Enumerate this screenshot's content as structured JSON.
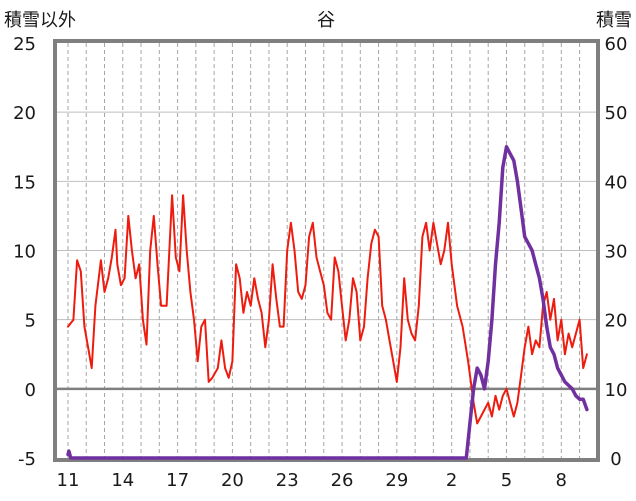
{
  "chart_data": {
    "type": "line",
    "title": "谷",
    "left_axis": {
      "label": "積雪以外",
      "min": -5,
      "max": 25,
      "step": 5,
      "ticks": [
        "25",
        "20",
        "15",
        "10",
        "5",
        "0",
        "-5"
      ]
    },
    "right_axis": {
      "label": "積雪",
      "min": 0,
      "max": 60,
      "step": 10,
      "ticks": [
        "60",
        "50",
        "40",
        "30",
        "20",
        "10",
        "0"
      ]
    },
    "x_ticks": [
      {
        "label": "11",
        "day": 0
      },
      {
        "label": "14",
        "day": 3
      },
      {
        "label": "17",
        "day": 6
      },
      {
        "label": "20",
        "day": 9
      },
      {
        "label": "23",
        "day": 12
      },
      {
        "label": "26",
        "day": 15
      },
      {
        "label": "29",
        "day": 18
      },
      {
        "label": "2",
        "day": 21
      },
      {
        "label": "5",
        "day": 24
      },
      {
        "label": "8",
        "day": 27
      }
    ],
    "x_range": [
      -0.6,
      28.9
    ],
    "grid": true,
    "series": [
      {
        "axis": "left",
        "color": "#ee1c0e",
        "points": [
          [
            0,
            4.5
          ],
          [
            0.3,
            5.0
          ],
          [
            0.5,
            9.3
          ],
          [
            0.7,
            8.5
          ],
          [
            0.9,
            4.5
          ],
          [
            1.1,
            3.0
          ],
          [
            1.3,
            1.5
          ],
          [
            1.5,
            6.0
          ],
          [
            1.8,
            9.3
          ],
          [
            2.0,
            7.0
          ],
          [
            2.2,
            8.0
          ],
          [
            2.4,
            9.5
          ],
          [
            2.6,
            11.5
          ],
          [
            2.7,
            9.0
          ],
          [
            2.9,
            7.5
          ],
          [
            3.1,
            8.0
          ],
          [
            3.3,
            12.5
          ],
          [
            3.5,
            10.0
          ],
          [
            3.7,
            8.0
          ],
          [
            3.9,
            9.0
          ],
          [
            4.1,
            5.0
          ],
          [
            4.3,
            3.2
          ],
          [
            4.5,
            10.0
          ],
          [
            4.7,
            12.5
          ],
          [
            4.9,
            9.0
          ],
          [
            5.1,
            6.0
          ],
          [
            5.4,
            6.0
          ],
          [
            5.7,
            14.0
          ],
          [
            5.9,
            9.5
          ],
          [
            6.1,
            8.5
          ],
          [
            6.3,
            14.0
          ],
          [
            6.5,
            10.0
          ],
          [
            6.7,
            7.0
          ],
          [
            6.9,
            5.0
          ],
          [
            7.1,
            2.0
          ],
          [
            7.3,
            4.5
          ],
          [
            7.5,
            5.0
          ],
          [
            7.7,
            0.5
          ],
          [
            7.9,
            0.8
          ],
          [
            8.2,
            1.5
          ],
          [
            8.4,
            3.5
          ],
          [
            8.6,
            1.5
          ],
          [
            8.8,
            0.8
          ],
          [
            9.0,
            2.0
          ],
          [
            9.2,
            9.0
          ],
          [
            9.4,
            8.0
          ],
          [
            9.6,
            5.5
          ],
          [
            9.8,
            7.0
          ],
          [
            10.0,
            6.0
          ],
          [
            10.2,
            8.0
          ],
          [
            10.4,
            6.5
          ],
          [
            10.6,
            5.5
          ],
          [
            10.8,
            3.0
          ],
          [
            11.0,
            5.0
          ],
          [
            11.2,
            9.0
          ],
          [
            11.4,
            6.5
          ],
          [
            11.6,
            4.5
          ],
          [
            11.8,
            4.5
          ],
          [
            12.0,
            10.0
          ],
          [
            12.2,
            12.0
          ],
          [
            12.4,
            10.0
          ],
          [
            12.6,
            7.0
          ],
          [
            12.8,
            6.5
          ],
          [
            13.0,
            7.5
          ],
          [
            13.2,
            11.0
          ],
          [
            13.4,
            12.0
          ],
          [
            13.6,
            9.5
          ],
          [
            13.8,
            8.5
          ],
          [
            14.0,
            7.5
          ],
          [
            14.2,
            5.5
          ],
          [
            14.4,
            5.0
          ],
          [
            14.6,
            9.5
          ],
          [
            14.8,
            8.5
          ],
          [
            15.0,
            6.0
          ],
          [
            15.2,
            3.5
          ],
          [
            15.4,
            5.0
          ],
          [
            15.6,
            8.0
          ],
          [
            15.8,
            7.0
          ],
          [
            16.0,
            3.5
          ],
          [
            16.2,
            4.5
          ],
          [
            16.4,
            8.0
          ],
          [
            16.6,
            10.5
          ],
          [
            16.8,
            11.5
          ],
          [
            17.0,
            11.0
          ],
          [
            17.2,
            6.0
          ],
          [
            17.4,
            5.0
          ],
          [
            17.6,
            3.5
          ],
          [
            17.8,
            2.0
          ],
          [
            18.0,
            0.5
          ],
          [
            18.2,
            3.0
          ],
          [
            18.4,
            8.0
          ],
          [
            18.6,
            5.0
          ],
          [
            18.8,
            4.0
          ],
          [
            19.0,
            3.5
          ],
          [
            19.2,
            6.0
          ],
          [
            19.4,
            11.0
          ],
          [
            19.6,
            12.0
          ],
          [
            19.8,
            10.0
          ],
          [
            20.0,
            12.0
          ],
          [
            20.2,
            10.5
          ],
          [
            20.4,
            9.0
          ],
          [
            20.6,
            10.0
          ],
          [
            20.8,
            12.0
          ],
          [
            21.0,
            9.0
          ],
          [
            21.3,
            6.0
          ],
          [
            21.6,
            4.5
          ],
          [
            21.9,
            2.0
          ],
          [
            22.2,
            -1.0
          ],
          [
            22.4,
            -2.5
          ],
          [
            22.6,
            -2.0
          ],
          [
            22.8,
            -1.5
          ],
          [
            23.0,
            -1.0
          ],
          [
            23.2,
            -2.0
          ],
          [
            23.4,
            -0.5
          ],
          [
            23.6,
            -1.5
          ],
          [
            23.8,
            -0.5
          ],
          [
            24.0,
            0.0
          ],
          [
            24.2,
            -1.0
          ],
          [
            24.4,
            -2.0
          ],
          [
            24.6,
            -1.0
          ],
          [
            24.8,
            1.0
          ],
          [
            25.0,
            3.0
          ],
          [
            25.2,
            4.5
          ],
          [
            25.4,
            2.5
          ],
          [
            25.6,
            3.5
          ],
          [
            25.8,
            3.0
          ],
          [
            26.0,
            6.0
          ],
          [
            26.2,
            7.0
          ],
          [
            26.4,
            5.0
          ],
          [
            26.6,
            6.5
          ],
          [
            26.8,
            3.5
          ],
          [
            27.0,
            5.0
          ],
          [
            27.2,
            2.5
          ],
          [
            27.4,
            4.0
          ],
          [
            27.6,
            3.0
          ],
          [
            27.8,
            4.0
          ],
          [
            28.0,
            5.0
          ],
          [
            28.2,
            1.5
          ],
          [
            28.4,
            2.5
          ]
        ]
      },
      {
        "axis": "right",
        "color": "#7030a0",
        "points": [
          [
            0.0,
            0.5
          ],
          [
            0.05,
            1.0
          ],
          [
            0.15,
            0.0
          ],
          [
            21.8,
            0.0
          ],
          [
            22.0,
            5.0
          ],
          [
            22.2,
            10.0
          ],
          [
            22.4,
            13.0
          ],
          [
            22.6,
            12.0
          ],
          [
            22.8,
            10.0
          ],
          [
            23.0,
            14.0
          ],
          [
            23.2,
            20.0
          ],
          [
            23.4,
            28.0
          ],
          [
            23.6,
            34.0
          ],
          [
            23.8,
            42.0
          ],
          [
            24.0,
            45.0
          ],
          [
            24.2,
            44.0
          ],
          [
            24.4,
            43.0
          ],
          [
            24.6,
            40.0
          ],
          [
            24.8,
            36.0
          ],
          [
            25.0,
            32.0
          ],
          [
            25.2,
            31.0
          ],
          [
            25.4,
            30.0
          ],
          [
            25.6,
            28.0
          ],
          [
            25.8,
            26.0
          ],
          [
            26.0,
            23.0
          ],
          [
            26.2,
            19.0
          ],
          [
            26.4,
            16.0
          ],
          [
            26.6,
            15.0
          ],
          [
            26.8,
            13.0
          ],
          [
            27.0,
            12.0
          ],
          [
            27.2,
            11.0
          ],
          [
            27.4,
            10.5
          ],
          [
            27.6,
            10.0
          ],
          [
            27.8,
            9.0
          ],
          [
            28.0,
            8.5
          ],
          [
            28.2,
            8.5
          ],
          [
            28.4,
            7.0
          ]
        ]
      }
    ]
  }
}
